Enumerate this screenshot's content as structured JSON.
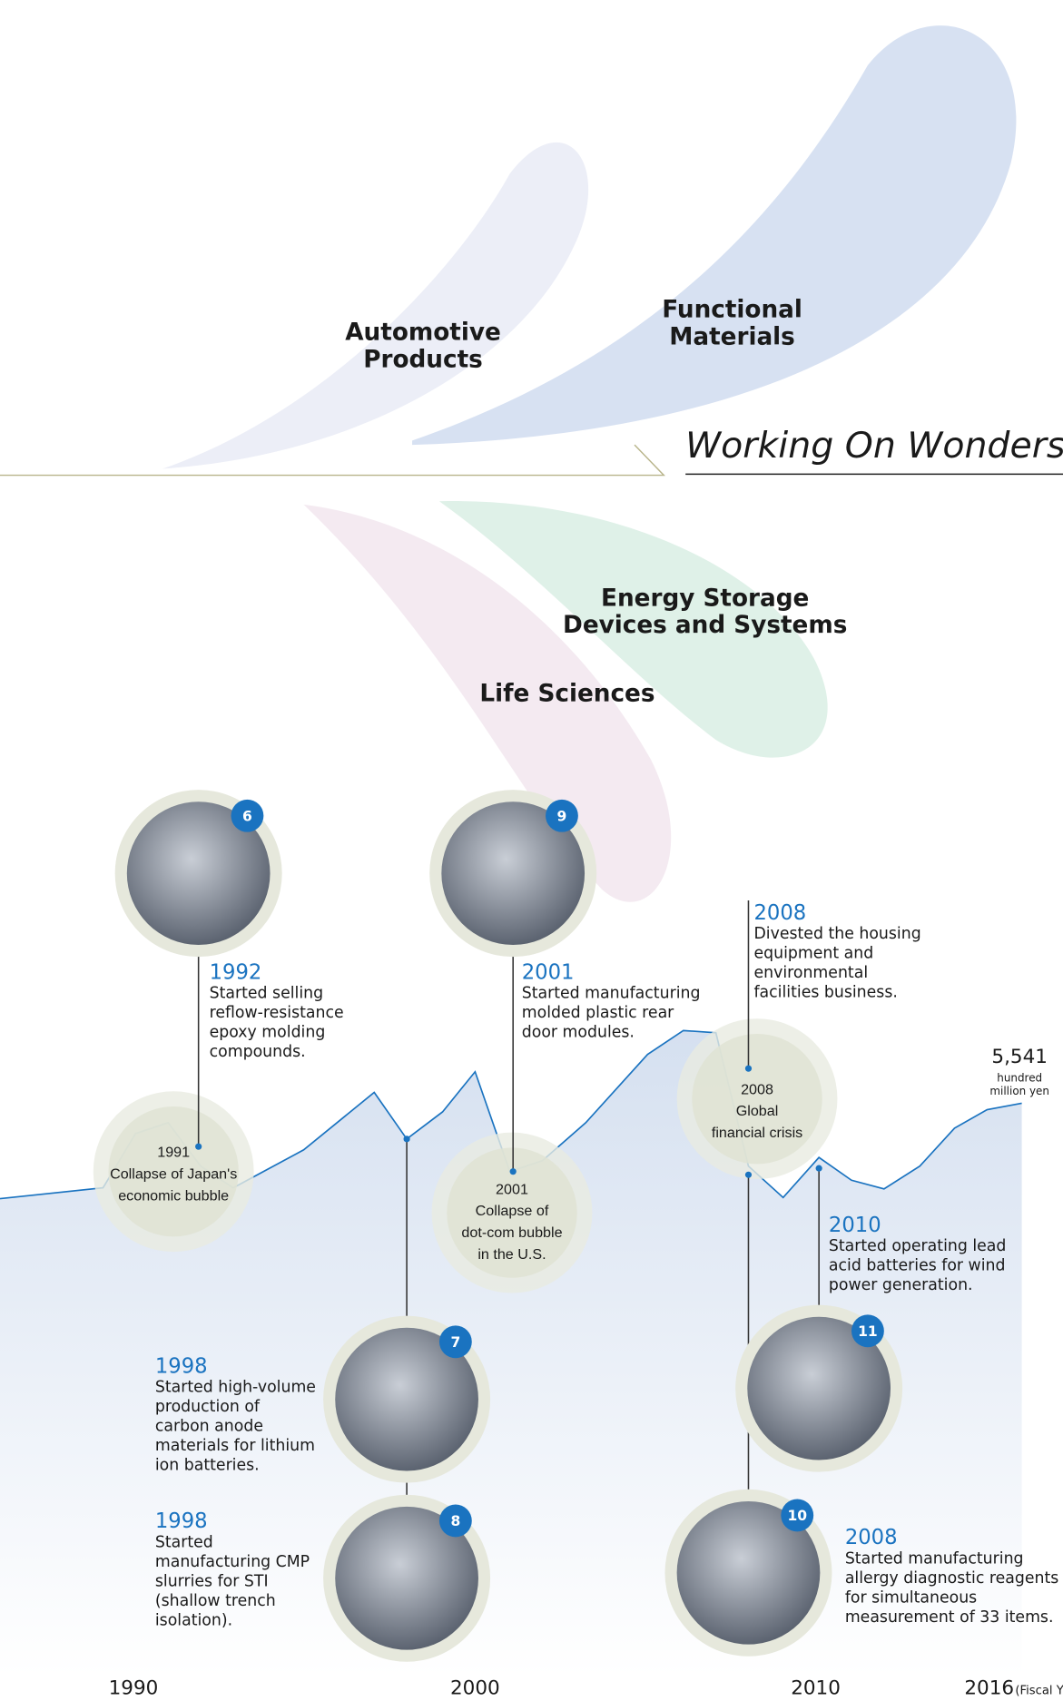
{
  "segments": [
    [
      "Automotive",
      "Products"
    ],
    [
      "Functional",
      "Materials"
    ],
    [
      "Energy Storage",
      "Devices and Systems"
    ],
    [
      "Life Sciences"
    ]
  ],
  "brand": "Working On Wonders",
  "milestones": [
    {
      "number": "6",
      "year": "1992",
      "text": [
        "Started selling",
        "reflow-resistance",
        "epoxy molding",
        "compounds."
      ]
    },
    {
      "number": "9",
      "year": "2001",
      "text": [
        "Started manufacturing",
        "molded plastic rear",
        "door modules."
      ]
    },
    {
      "year": "2008",
      "text": [
        "Divested the housing",
        "equipment and",
        "environmental",
        "facilities business."
      ]
    },
    {
      "number": "7",
      "year": "1998",
      "text": [
        "Started high-volume",
        "production of",
        "carbon anode",
        "materials for lithium",
        "ion batteries."
      ]
    },
    {
      "number": "8",
      "year": "1998",
      "text": [
        "Started",
        "manufacturing CMP",
        "slurries for STI",
        "(shallow trench",
        "isolation)."
      ]
    },
    {
      "number": "11",
      "year": "2010",
      "text": [
        "Started operating lead",
        "acid batteries for wind",
        "power generation."
      ]
    },
    {
      "number": "10",
      "year": "2008",
      "text": [
        "Started manufacturing",
        "allergy diagnostic reagents",
        "for simultaneous",
        "measurement of 33 items."
      ]
    }
  ],
  "events": [
    [
      "1991",
      "Collapse of Japan's",
      "economic bubble"
    ],
    [
      "2001",
      "Collapse of",
      "dot-com bubble",
      "in the U.S."
    ],
    [
      "2008",
      "Global",
      "financial crisis"
    ]
  ],
  "endpoint": {
    "value": "5,541",
    "unit": [
      "hundred",
      "million yen"
    ]
  },
  "axis": {
    "labels": [
      "1990",
      "2000",
      "2010",
      "2016"
    ],
    "note": "(Fiscal Y"
  }
}
